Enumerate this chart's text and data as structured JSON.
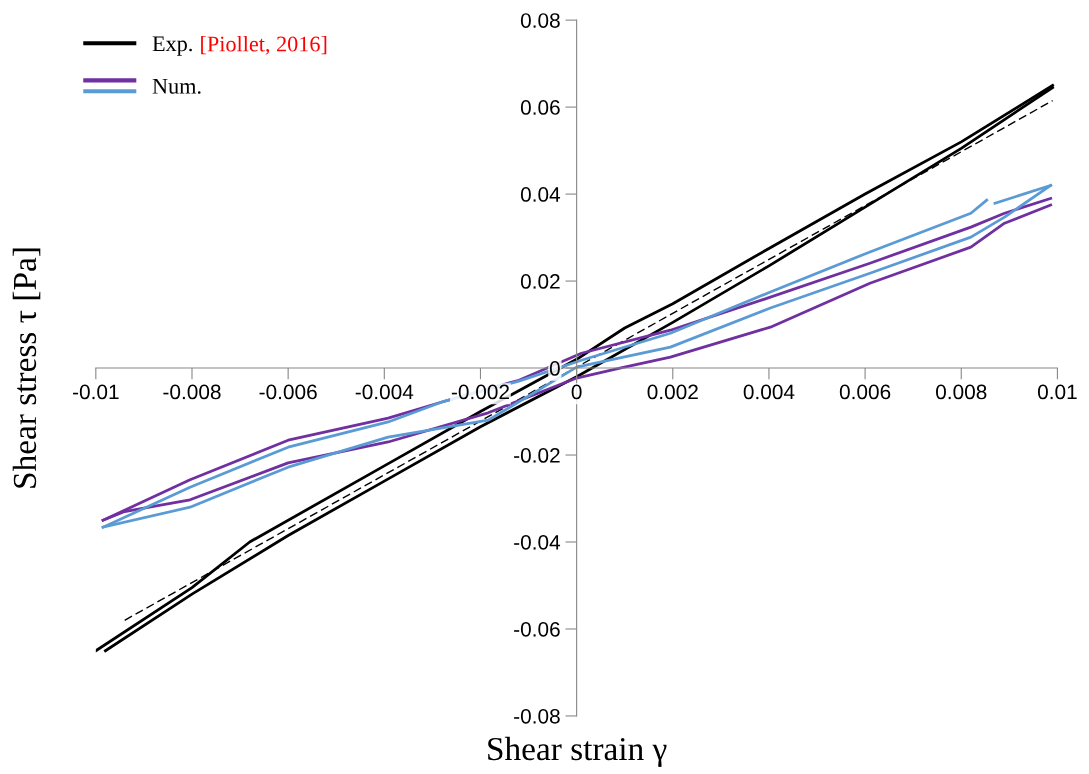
{
  "chart_data": {
    "type": "line",
    "xlabel": "Shear strain γ",
    "ylabel": "Shear stress τ [Pa]",
    "xlim": [
      -0.01,
      0.01
    ],
    "ylim": [
      -0.08,
      0.08
    ],
    "xticks": [
      -0.01,
      -0.008,
      -0.006,
      -0.004,
      -0.002,
      0,
      0.002,
      0.004,
      0.006,
      0.008,
      0.01
    ],
    "yticks": [
      -0.08,
      -0.06,
      -0.04,
      -0.02,
      0,
      0.02,
      0.04,
      0.06,
      0.08
    ],
    "grid": false,
    "legend": "top left",
    "marker": "none",
    "annotations": [
      "[Piollet, 2016]"
    ],
    "series": [
      {
        "name": "Exp.",
        "color": "#000000",
        "line_style": "solid",
        "x": [
          -0.01,
          -0.008,
          -0.0068,
          -0.004,
          -0.002,
          0,
          0.001,
          0.002,
          0.004,
          0.006,
          0.008,
          0.0099
        ],
        "values": [
          -0.065,
          -0.0505,
          -0.04,
          -0.0225,
          -0.01,
          0.002,
          0.0092,
          0.0148,
          0.0275,
          0.04,
          0.052,
          0.065
        ]
      },
      {
        "color": "#000000",
        "line_style": "solid",
        "x": [
          -0.0098,
          -0.008,
          -0.006,
          -0.004,
          -0.002,
          0,
          0.002,
          0.004,
          0.006,
          0.008,
          0.0099
        ],
        "values": [
          -0.065,
          -0.052,
          -0.0385,
          -0.026,
          -0.0135,
          -0.002,
          0.0105,
          0.0235,
          0.037,
          0.0505,
          0.0645
        ]
      },
      {
        "color": "#000000",
        "line_style": "dashed",
        "x": [
          -0.0094,
          0.0099
        ],
        "values": [
          -0.058,
          0.0615
        ]
      },
      {
        "name": "Num.",
        "color": "#7030a0",
        "line_style": "solid",
        "x": [
          -0.00985,
          -0.00804,
          -0.006,
          -0.00392,
          -0.0028,
          -0.0012,
          0.0001,
          0.00195,
          0.00403,
          0.0061,
          0.0082,
          0.0089,
          0.00986
        ],
        "values": [
          -0.035,
          -0.0257,
          -0.0166,
          -0.0115,
          -0.0078,
          -0.0028,
          0.0034,
          0.0087,
          0.0163,
          0.0241,
          0.0324,
          0.0356,
          0.039
        ]
      },
      {
        "color": "#7030a0",
        "line_style": "solid",
        "x": [
          -0.00985,
          -0.0094,
          -0.00804,
          -0.006,
          -0.00392,
          -0.00184,
          0,
          0.0009,
          0.00195,
          0.00403,
          0.0061,
          0.0082,
          0.0089,
          0.00986
        ],
        "values": [
          -0.035,
          -0.033,
          -0.0303,
          -0.0218,
          -0.017,
          -0.0103,
          -0.0023,
          0.0,
          0.0025,
          0.0094,
          0.0195,
          0.0278,
          0.0333,
          0.0375
        ]
      },
      {
        "color": "#5b9bd5",
        "line_style": "solid",
        "x": [
          -0.00985,
          -0.00804,
          -0.006,
          -0.00392,
          -0.0028,
          -0.0012,
          0.0001,
          0.00195,
          0.00403,
          0.0061,
          0.0082,
          0.00853,
          0.0086,
          0.0087,
          0.00986
        ],
        "values": [
          -0.0366,
          -0.0274,
          -0.0182,
          -0.0124,
          -0.0078,
          -0.003,
          0.0018,
          0.008,
          0.0175,
          0.0267,
          0.0356,
          0.0386,
          null,
          0.0379,
          0.042
        ]
      },
      {
        "color": "#5b9bd5",
        "line_style": "solid",
        "x": [
          -0.00985,
          -0.00804,
          -0.006,
          -0.00392,
          -0.00184,
          0,
          0.00195,
          0.00403,
          0.0061,
          0.0082,
          0.0089,
          0.00986
        ],
        "values": [
          -0.0366,
          -0.032,
          -0.0228,
          -0.0159,
          -0.012,
          0.0002,
          0.0048,
          0.0138,
          0.0218,
          0.0301,
          0.0347,
          0.042
        ]
      }
    ]
  }
}
